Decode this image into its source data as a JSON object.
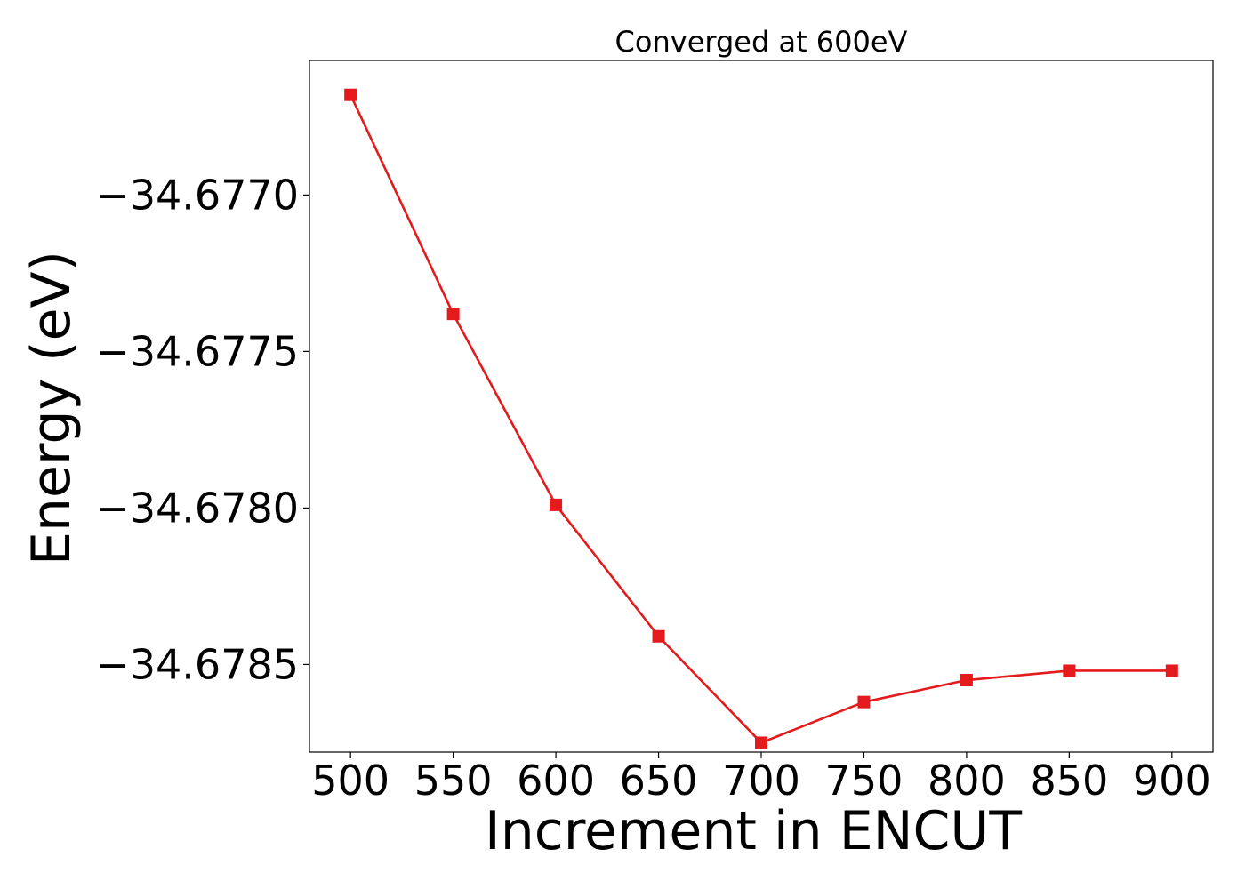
{
  "chart_data": {
    "type": "line",
    "title": "Converged at 600eV",
    "xlabel": "Increment in ENCUT",
    "ylabel": "Energy (eV)",
    "x": [
      500,
      550,
      600,
      650,
      700,
      750,
      800,
      850,
      900
    ],
    "series": [
      {
        "values": [
          -34.67668,
          -34.67738,
          -34.67799,
          -34.67841,
          -34.67875,
          -34.67862,
          -34.67855,
          -34.67852,
          -34.67852
        ],
        "color": "#e41a1c",
        "marker": "square"
      }
    ],
    "xticks": [
      500,
      550,
      600,
      650,
      700,
      750,
      800,
      850,
      900
    ],
    "xtick_labels": [
      "500",
      "550",
      "600",
      "650",
      "700",
      "750",
      "800",
      "850",
      "900"
    ],
    "yticks": [
      -34.677,
      -34.6775,
      -34.678,
      -34.6785
    ],
    "ytick_labels": [
      "−34.6770",
      "−34.6775",
      "−34.6780",
      "−34.6785"
    ],
    "xlim": [
      480,
      920
    ],
    "ylim": [
      -34.67878,
      -34.67657
    ],
    "grid": false,
    "legend": false
  }
}
